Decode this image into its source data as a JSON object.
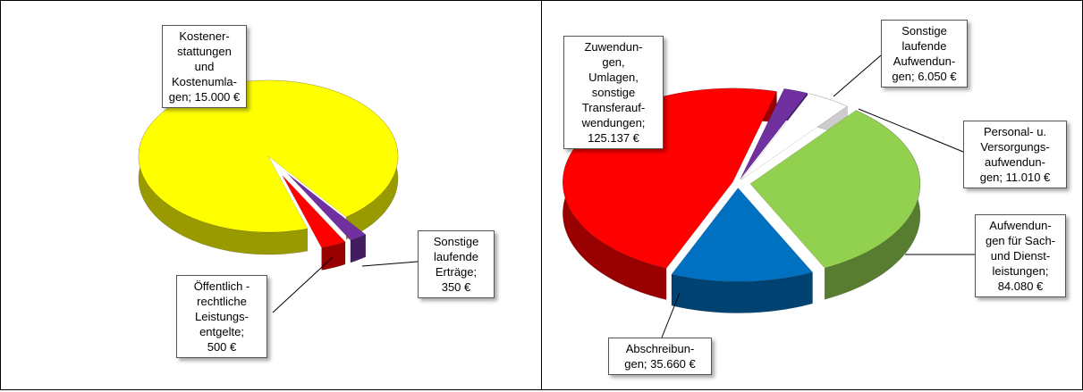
{
  "chart_data": [
    {
      "type": "pie3d",
      "values": [
        15000,
        350,
        500
      ],
      "value_labels": [
        "Kostener-\nstattungen\nund\nKostenumla-\ngen; 15.000 €",
        "Sonstige\nlaufende\nErträge;\n350 €",
        "Öffentlich -\nrechtliche\nLeistungs-\nentgelte;\n500 €"
      ],
      "colors": [
        "#ffff00",
        "#7030a0",
        "#ff0000"
      ]
    },
    {
      "type": "pie3d",
      "values": [
        6050,
        11010,
        84080,
        35660,
        125137
      ],
      "value_labels": [
        "Sonstige\nlaufende\nAufwendun-\ngen; 6.050 €",
        "Personal- u.\nVersorgungs-\naufwendun-\ngen; 11.010 €",
        "Aufwendun-\ngen für Sach-\nund Dienst-\nleistungen;\n84.080 €",
        "Abschreibun-\ngen; 35.660 €",
        "Zuwendun-\ngen,\nUmlagen,\nsonstige\nTransferauf-\nwendungen;\n125.137 €"
      ],
      "colors": [
        "#7030a0",
        "#ffffff",
        "#92d050",
        "#0070c0",
        "#ff0000"
      ]
    }
  ]
}
